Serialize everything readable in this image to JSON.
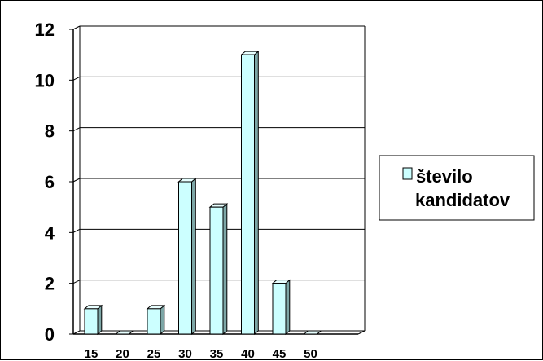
{
  "chart_data": {
    "type": "bar",
    "categories": [
      "15",
      "20",
      "25",
      "30",
      "35",
      "40",
      "45",
      "50"
    ],
    "series": [
      {
        "name": "število kandidatov",
        "values": [
          1,
          0,
          1,
          6,
          5,
          11,
          2,
          0
        ]
      }
    ],
    "y_ticks": [
      "0",
      "2",
      "4",
      "6",
      "8",
      "10",
      "12"
    ],
    "ylim": [
      0,
      12
    ],
    "grid": true,
    "legend_position": "right",
    "legend": {
      "line1": "število",
      "line2": "kandidatov"
    },
    "colors": {
      "bar_front": "#CCFFFF",
      "bar_side": "#7DA6A6",
      "bar_top": "#E8FFFF",
      "bar_outline": "#000000",
      "grid": "#000000"
    }
  }
}
